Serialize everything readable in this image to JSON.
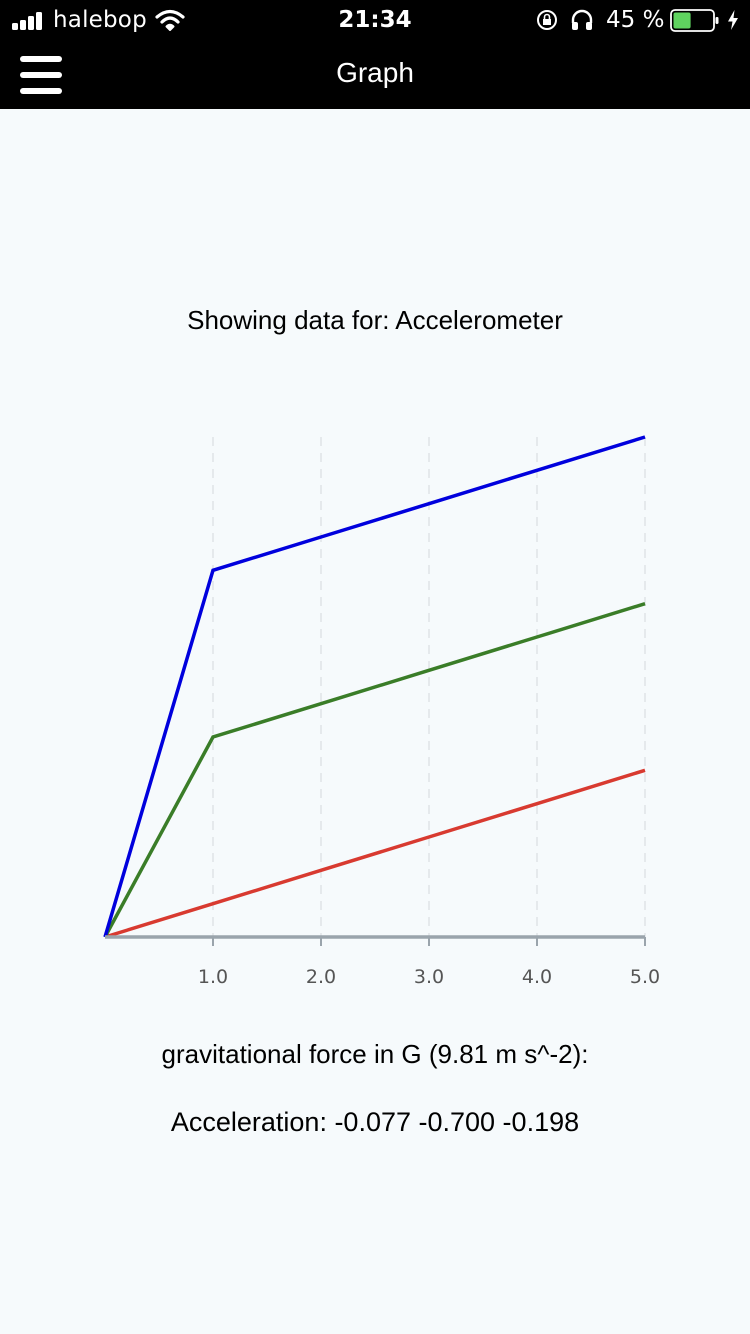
{
  "status_bar": {
    "carrier": "halebop",
    "time": "21:34",
    "battery_percent": "45 %",
    "battery_level": 0.45,
    "icons": [
      "signal-icon",
      "wifi-icon",
      "orientation-lock-icon",
      "headphones-icon",
      "battery-icon",
      "charging-icon"
    ]
  },
  "nav": {
    "title": "Graph",
    "menu_icon": "hamburger-menu-icon"
  },
  "sensor_title": "Showing data for: Accelerometer",
  "chart_data": {
    "type": "line",
    "title": "",
    "xlabel": "",
    "ylabel": "",
    "x": [
      0,
      1,
      2,
      3,
      4,
      5
    ],
    "x_tick_labels": [
      "1.0",
      "2.0",
      "3.0",
      "4.0",
      "5.0"
    ],
    "xlim": [
      0,
      5
    ],
    "ylim": [
      0,
      3
    ],
    "grid": "vertical-dashed",
    "series": [
      {
        "color": "#0000dd",
        "values": [
          0,
          2.2,
          2.4,
          2.6,
          2.8,
          3.0
        ]
      },
      {
        "color": "#3a7d28",
        "values": [
          0,
          1.2,
          1.4,
          1.6,
          1.8,
          2.0
        ]
      },
      {
        "color": "#d83a30",
        "values": [
          0,
          0.2,
          0.4,
          0.6,
          0.8,
          1.0
        ]
      }
    ]
  },
  "unit_label": "gravitational force in G (9.81 m s^-2):",
  "reading": "Acceleration: -0.077 -0.700 -0.198",
  "colors": {
    "bar_background": "#000000",
    "page_background": "#f6fafc",
    "axis": "#9aa4ac",
    "grid": "#dfe3e6",
    "battery_fill": "#5fd35f"
  }
}
